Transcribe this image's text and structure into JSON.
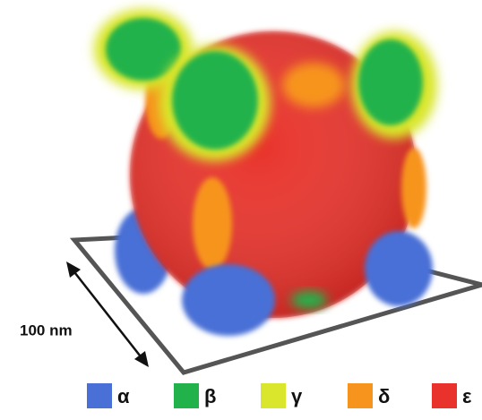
{
  "scale_bar": {
    "label": "100 nm"
  },
  "legend": [
    {
      "label": "α",
      "color": "#4a6fd6"
    },
    {
      "label": "β",
      "color": "#22b24c"
    },
    {
      "label": "γ",
      "color": "#d9e62c"
    },
    {
      "label": "δ",
      "color": "#f7941d"
    },
    {
      "label": "ε",
      "color": "#e8322b"
    }
  ]
}
